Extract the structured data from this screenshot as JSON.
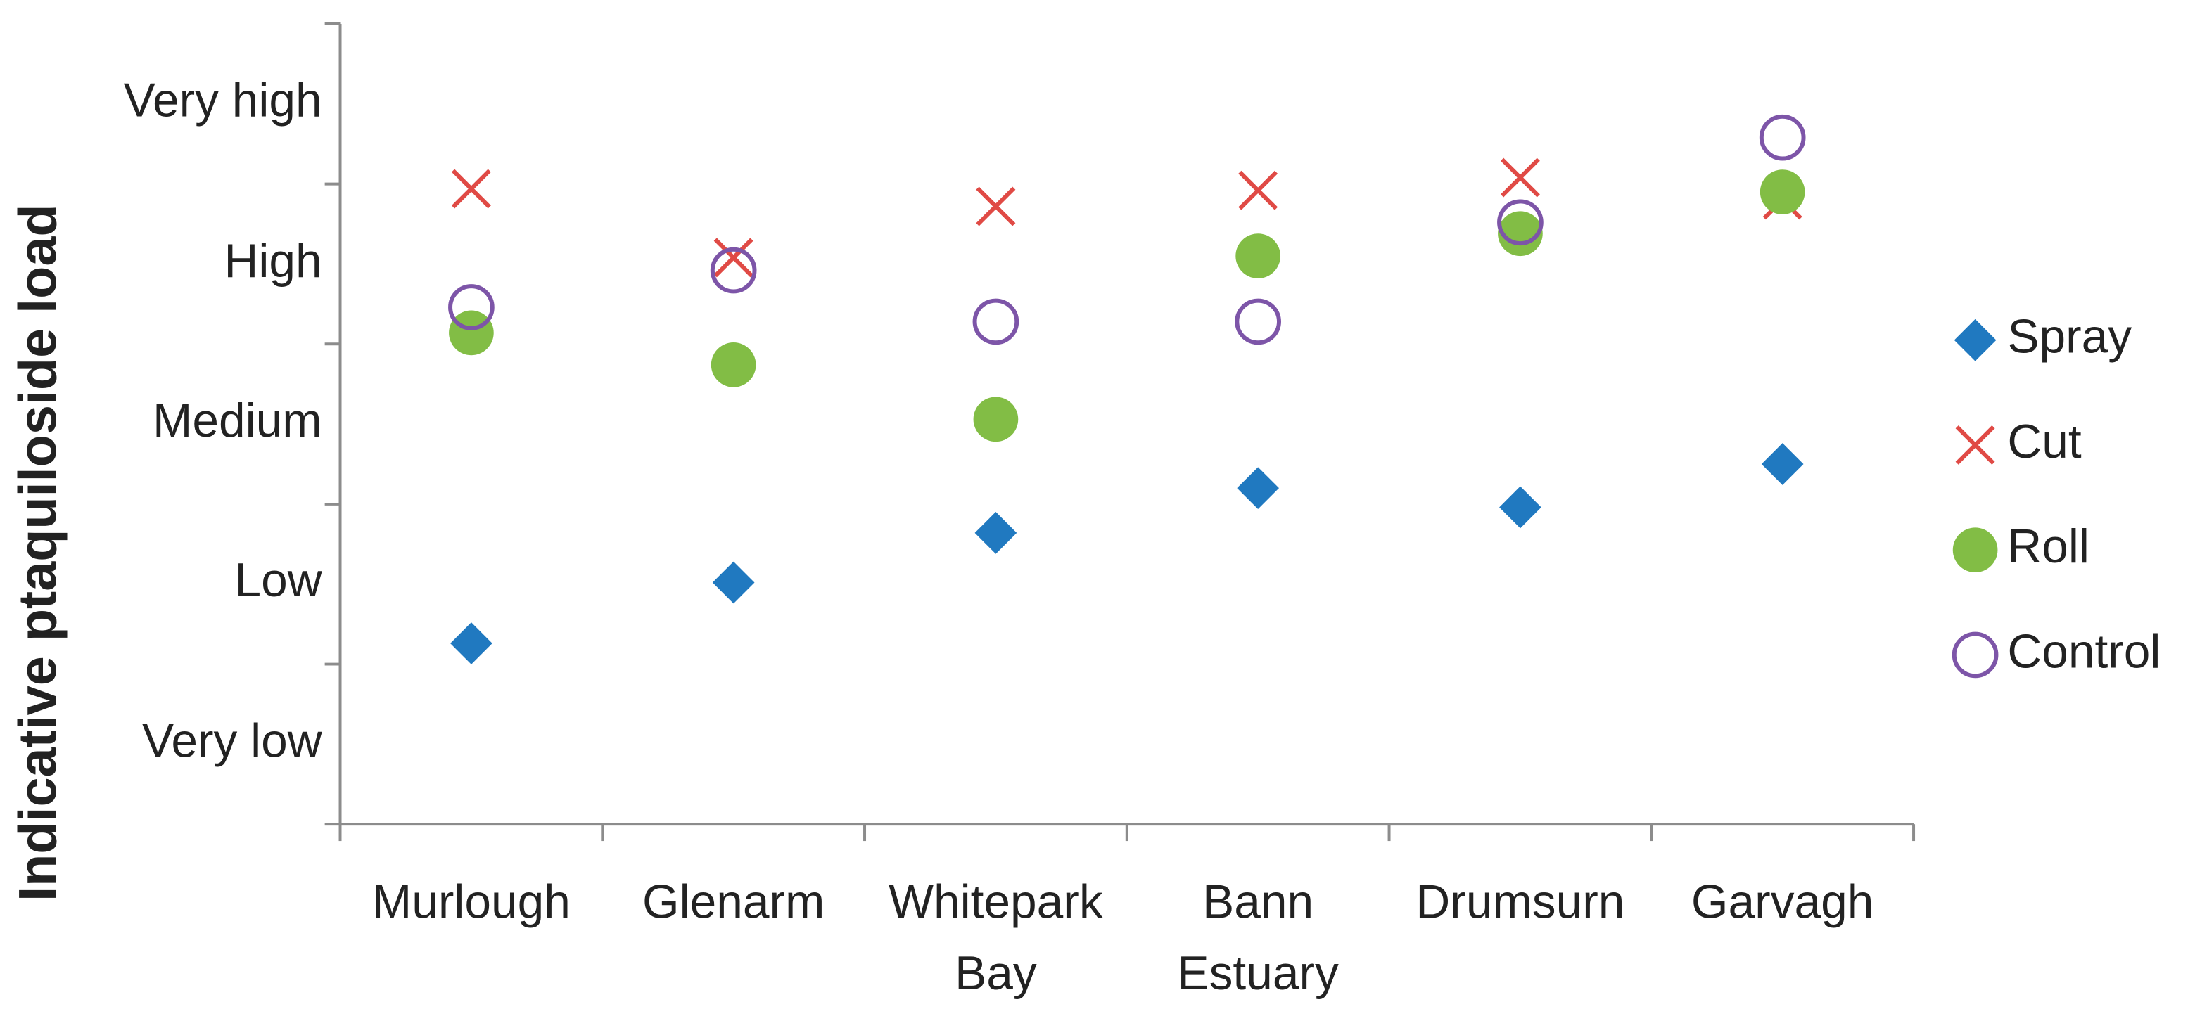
{
  "chart_data": {
    "type": "scatter",
    "y_label": "Indicative ptaquiloside load",
    "y_band_labels": [
      "Very low",
      "Low",
      "Medium",
      "High",
      "Very high"
    ],
    "categories": [
      "Murlough",
      "Glenarm",
      "Whitepark Bay",
      "Bann Estuary",
      "Drumsurn",
      "Garvagh"
    ],
    "ylim": [
      0,
      5
    ],
    "yticks": [
      0,
      1,
      2,
      3,
      4,
      5
    ],
    "legend": "right",
    "series": [
      {
        "name": "Spray",
        "color": "#2079c0",
        "marker": "diamond",
        "values": [
          1.13,
          1.51,
          1.82,
          2.1,
          1.98,
          2.25
        ]
      },
      {
        "name": "Cut",
        "color": "#e04a45",
        "marker": "cross",
        "values": [
          3.97,
          3.54,
          3.86,
          3.96,
          4.04,
          3.9
        ]
      },
      {
        "name": "Roll",
        "color": "#82bd45",
        "marker": "dot",
        "values": [
          3.07,
          2.87,
          2.53,
          3.55,
          3.69,
          3.95
        ]
      },
      {
        "name": "Control",
        "color": "#7d55a8",
        "marker": "ring",
        "values": [
          3.23,
          3.46,
          3.14,
          3.14,
          3.76,
          4.29
        ]
      }
    ]
  }
}
